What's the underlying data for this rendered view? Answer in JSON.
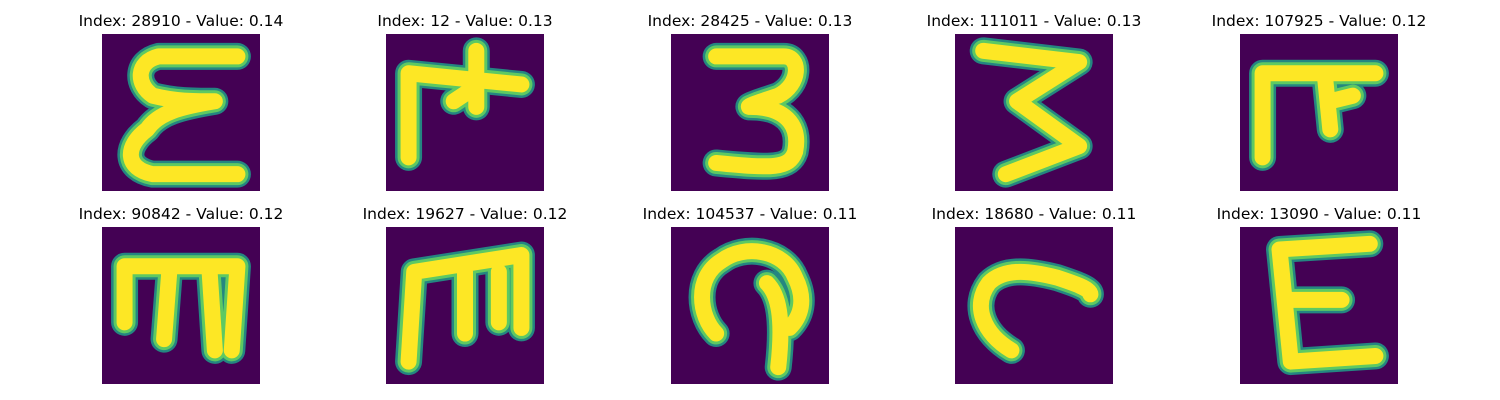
{
  "colors": {
    "background": "#440154",
    "stroke": "#fde725",
    "edge": "#1f9e89"
  },
  "panels": [
    {
      "title": "Index: 28910 - Value: 0.14",
      "index": 28910,
      "value": 0.14,
      "glyph": "open-three-curvy"
    },
    {
      "title": "Index: 12 - Value: 0.13",
      "index": 12,
      "value": 0.13,
      "glyph": "gate-cross"
    },
    {
      "title": "Index: 28425 - Value: 0.13",
      "index": 28425,
      "value": 0.13,
      "glyph": "three"
    },
    {
      "title": "Index: 111011 - Value: 0.13",
      "index": 111011,
      "value": 0.13,
      "glyph": "zigzag-three"
    },
    {
      "title": "Index: 107925 - Value: 0.12",
      "index": 107925,
      "value": 0.12,
      "glyph": "bold-gate"
    },
    {
      "title": "Index: 90842 - Value: 0.12",
      "index": 90842,
      "value": 0.12,
      "glyph": "m-sideways"
    },
    {
      "title": "Index: 19627 - Value: 0.12",
      "index": 19627,
      "value": 0.12,
      "glyph": "m-upright"
    },
    {
      "title": "Index: 104537 - Value: 0.11",
      "index": 104537,
      "value": 0.11,
      "glyph": "hook-loop"
    },
    {
      "title": "Index: 18680 - Value: 0.11",
      "index": 18680,
      "value": 0.11,
      "glyph": "arc"
    },
    {
      "title": "Index: 13090 - Value: 0.11",
      "index": 13090,
      "value": 0.11,
      "glyph": "capital-e"
    }
  ]
}
